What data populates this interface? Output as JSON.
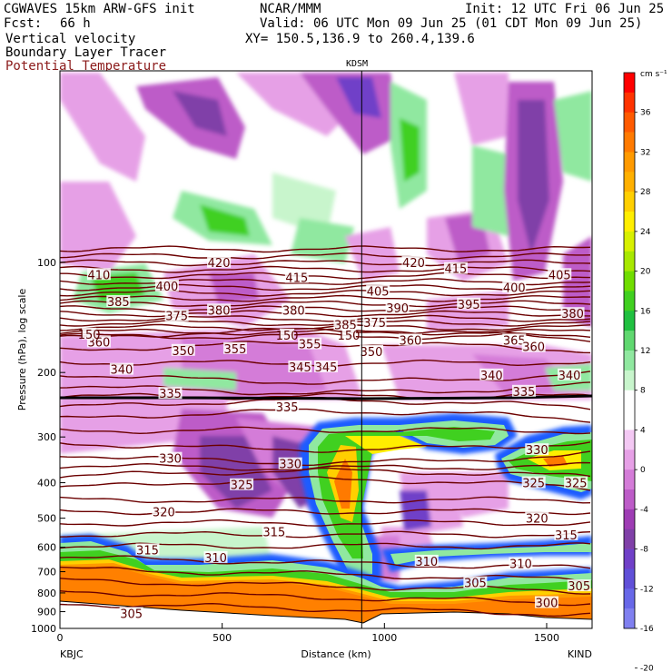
{
  "header": {
    "model": "CGWAVES 15km ARW-GFS init",
    "org": "NCAR/MMM",
    "init": "Init: 12 UTC Fri 06 Jun 25",
    "fcst_label": "Fcst:",
    "fcst_value": "66 h",
    "valid": "Valid: 06 UTC Mon 09 Jun 25 (01 CDT Mon 09 Jun 25)",
    "field1": "Vertical velocity",
    "field2": "Boundary Layer Tracer",
    "field3": "Potential Temperature",
    "xy": "XY= 150.5,136.9 to 260.4,139.6",
    "station_mark": "KDSM",
    "left_station": "KBJC",
    "right_station": "KIND"
  },
  "colors": {
    "theta_contour": "#6b0000",
    "tracer_outline": "#1e5cff",
    "terrain": "#ffffff"
  },
  "chart_data": {
    "type": "heatmap",
    "xlabel": "Distance (km)",
    "ylabel": "Pressure (hPa), log scale",
    "xlim": [
      0,
      1640
    ],
    "ylim": [
      1000,
      30
    ],
    "yscale": "log",
    "x_ticks": [
      0,
      500,
      1000,
      1500
    ],
    "x_tick_labels": [
      "0",
      "500",
      "1000",
      "1500"
    ],
    "y_ticks": [
      100,
      200,
      300,
      400,
      500,
      600,
      700,
      800,
      900,
      1000
    ],
    "y_tick_labels": [
      "100",
      "200",
      "300",
      "400",
      "500",
      "600",
      "700",
      "800",
      "900",
      "1000"
    ],
    "station_marker_x": 930,
    "colorbar": {
      "unit": "cm s⁻¹",
      "labels": [
        "36",
        "32",
        "28",
        "24",
        "20",
        "16",
        "12",
        "8",
        "4",
        "0",
        "-4",
        "-8",
        "-12",
        "-16",
        "-20"
      ],
      "colors": [
        "#ff0000",
        "#ff3300",
        "#ff5a00",
        "#ff7a00",
        "#ff9a00",
        "#ffb000",
        "#ffcf00",
        "#ffee00",
        "#d8f000",
        "#a8e800",
        "#70dd00",
        "#40d020",
        "#20c040",
        "#60d870",
        "#90e8a0",
        "#c8f5cc",
        "#ffffff",
        "#ffffff",
        "#f3c8f3",
        "#e6a0e6",
        "#d47cd8",
        "#bd5cc8",
        "#9e3cb4",
        "#8040a8",
        "#7040c8",
        "#6050d8",
        "#6868e8",
        "#8080f0"
      ]
    },
    "theta_labels": [
      {
        "x": 120,
        "p": 108,
        "v": "410"
      },
      {
        "x": 490,
        "p": 100,
        "v": "420"
      },
      {
        "x": 730,
        "p": 110,
        "v": "415"
      },
      {
        "x": 1090,
        "p": 100,
        "v": "420"
      },
      {
        "x": 1220,
        "p": 104,
        "v": "415"
      },
      {
        "x": 1540,
        "p": 108,
        "v": "405"
      },
      {
        "x": 330,
        "p": 116,
        "v": "400"
      },
      {
        "x": 1400,
        "p": 117,
        "v": "400"
      },
      {
        "x": 180,
        "p": 128,
        "v": "385"
      },
      {
        "x": 490,
        "p": 135,
        "v": "380"
      },
      {
        "x": 720,
        "p": 135,
        "v": "380"
      },
      {
        "x": 980,
        "p": 120,
        "v": "405"
      },
      {
        "x": 1040,
        "p": 133,
        "v": "390"
      },
      {
        "x": 1260,
        "p": 130,
        "v": "395"
      },
      {
        "x": 1580,
        "p": 138,
        "v": "380"
      },
      {
        "x": 360,
        "p": 140,
        "v": "375"
      },
      {
        "x": 880,
        "p": 148,
        "v": "385"
      },
      {
        "x": 970,
        "p": 146,
        "v": "375"
      },
      {
        "x": 120,
        "p": 165,
        "v": "360"
      },
      {
        "x": 380,
        "p": 174,
        "v": "350"
      },
      {
        "x": 540,
        "p": 172,
        "v": "355"
      },
      {
        "x": 770,
        "p": 167,
        "v": "355"
      },
      {
        "x": 1080,
        "p": 163,
        "v": "360"
      },
      {
        "x": 1400,
        "p": 163,
        "v": "365"
      },
      {
        "x": 1460,
        "p": 170,
        "v": "360"
      },
      {
        "x": 960,
        "p": 175,
        "v": "350"
      },
      {
        "x": 190,
        "p": 196,
        "v": "340"
      },
      {
        "x": 740,
        "p": 193,
        "v": "345"
      },
      {
        "x": 820,
        "p": 193,
        "v": "345"
      },
      {
        "x": 1330,
        "p": 203,
        "v": "340"
      },
      {
        "x": 1570,
        "p": 203,
        "v": "340"
      },
      {
        "x": 340,
        "p": 228,
        "v": "335"
      },
      {
        "x": 700,
        "p": 248,
        "v": "335"
      },
      {
        "x": 1430,
        "p": 225,
        "v": "335"
      },
      {
        "x": 340,
        "p": 343,
        "v": "330"
      },
      {
        "x": 710,
        "p": 355,
        "v": "330"
      },
      {
        "x": 1470,
        "p": 325,
        "v": "330"
      },
      {
        "x": 560,
        "p": 405,
        "v": "325"
      },
      {
        "x": 1460,
        "p": 400,
        "v": "325"
      },
      {
        "x": 1590,
        "p": 400,
        "v": "325"
      },
      {
        "x": 320,
        "p": 480,
        "v": "320"
      },
      {
        "x": 1470,
        "p": 500,
        "v": "320"
      },
      {
        "x": 660,
        "p": 545,
        "v": "315"
      },
      {
        "x": 1560,
        "p": 555,
        "v": "315"
      },
      {
        "x": 270,
        "p": 610,
        "v": "315"
      },
      {
        "x": 480,
        "p": 640,
        "v": "310"
      },
      {
        "x": 1130,
        "p": 655,
        "v": "310"
      },
      {
        "x": 1420,
        "p": 665,
        "v": "310"
      },
      {
        "x": 1280,
        "p": 750,
        "v": "305"
      },
      {
        "x": 1600,
        "p": 765,
        "v": "305"
      },
      {
        "x": 1500,
        "p": 850,
        "v": "300"
      },
      {
        "x": 220,
        "p": 910,
        "v": "305"
      },
      {
        "x": 90,
        "p": 157,
        "v": "150"
      },
      {
        "x": 700,
        "p": 158,
        "v": "150"
      },
      {
        "x": 890,
        "p": 158,
        "v": "150"
      }
    ]
  }
}
